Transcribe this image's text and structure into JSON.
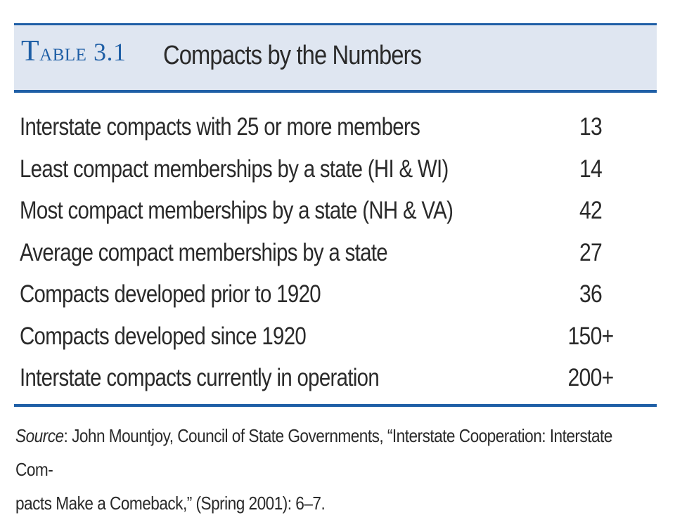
{
  "table": {
    "label": "Table 3.1",
    "title": "Compacts by the Numbers",
    "rows": [
      {
        "label": "Interstate compacts with 25 or more members",
        "value": "13"
      },
      {
        "label": "Least compact memberships by a state (HI & WI)",
        "value": "14"
      },
      {
        "label": "Most compact memberships by a state (NH & VA)",
        "value": "42"
      },
      {
        "label": "Average compact memberships by a state",
        "value": "27"
      },
      {
        "label": "Compacts developed prior to 1920",
        "value": "36"
      },
      {
        "label": "Compacts developed since 1920",
        "value": "150+"
      },
      {
        "label": "Interstate compacts currently in operation",
        "value": "200+"
      }
    ],
    "source": {
      "lead": "Source",
      "text": ": John Mountjoy, Council of State Governments, “Interstate Cooperation: Interstate Com-",
      "text2": "pacts Make a Comeback,” (Spring 2001): 6–7."
    }
  },
  "colors": {
    "accent": "#1f5fa6",
    "header_band": "#dfe6f1",
    "text": "#2a2a2a"
  }
}
